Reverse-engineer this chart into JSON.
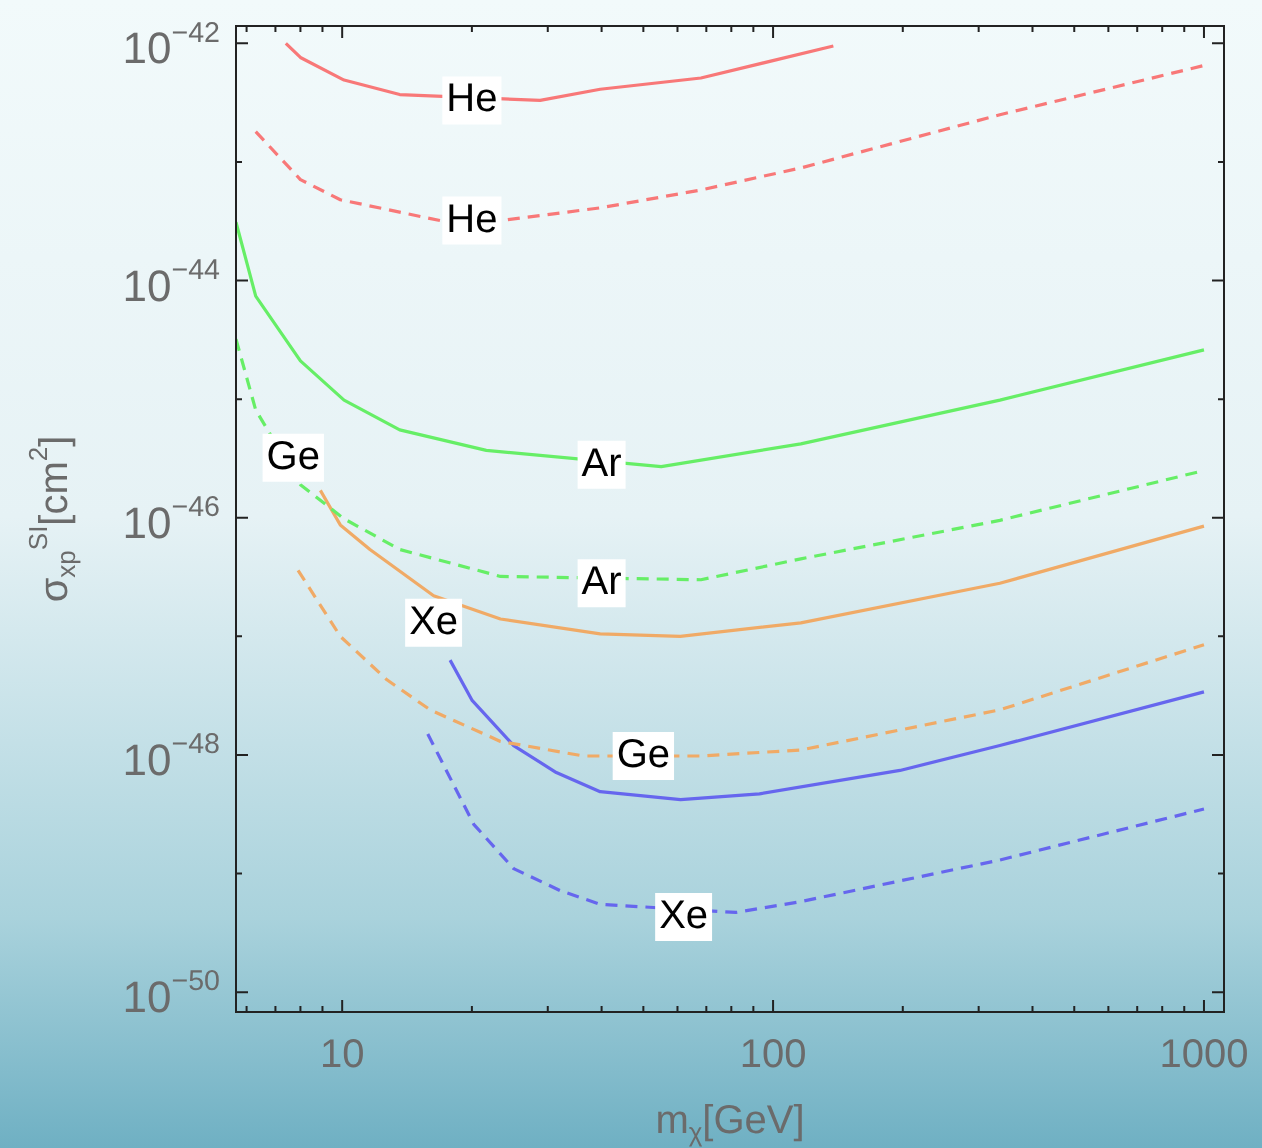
{
  "chart_data": {
    "type": "line",
    "xlabel": "m$_{χ}$[GeV]",
    "ylabel": "σ$_{xp}$$^{SI}$[cm$^{2}$]",
    "log": "xy",
    "grid": false,
    "legend": false,
    "marker": "none",
    "xlim": [
      5.67,
      1113
    ],
    "ylim": [
      6.8e-51,
      1.4e-42
    ],
    "xticks": [
      {
        "value": 6,
        "label": null
      },
      {
        "value": 7,
        "label": null
      },
      {
        "value": 8,
        "label": null
      },
      {
        "value": 9,
        "label": null
      },
      10,
      {
        "value": 20,
        "label": null
      },
      {
        "value": 30,
        "label": null
      },
      {
        "value": 40,
        "label": null
      },
      {
        "value": 50,
        "label": null
      },
      {
        "value": 60,
        "label": null
      },
      {
        "value": 70,
        "label": null
      },
      {
        "value": 80,
        "label": null
      },
      {
        "value": 90,
        "label": null
      },
      100,
      {
        "value": 200,
        "label": null
      },
      {
        "value": 300,
        "label": null
      },
      {
        "value": 400,
        "label": null
      },
      {
        "value": 500,
        "label": null
      },
      {
        "value": 600,
        "label": null
      },
      {
        "value": 700,
        "label": null
      },
      {
        "value": 800,
        "label": null
      },
      {
        "value": 900,
        "label": null
      },
      1000
    ],
    "yticks": [
      {
        "value": 1e-42,
        "label": "10$^{−42}$"
      },
      {
        "value": 1e-43,
        "label": null
      },
      {
        "value": 1e-44,
        "label": "10$^{−44}$"
      },
      {
        "value": 1e-45,
        "label": null
      },
      {
        "value": 1e-46,
        "label": "10$^{−46}$"
      },
      {
        "value": 1e-47,
        "label": null
      },
      {
        "value": 1e-48,
        "label": "10$^{−48}$"
      },
      {
        "value": 1e-49,
        "label": null
      },
      {
        "value": 1e-50,
        "label": "10$^{−50}$"
      }
    ],
    "series": [
      {
        "color": "#f87878",
        "line_style": "solid",
        "x": [
          7.4,
          8.0,
          10.1,
          13.6,
          28.8,
          39.7,
          68,
          138
        ],
        "values": [
          1e-42,
          7.6e-43,
          4.9e-43,
          3.7e-43,
          3.3e-43,
          4.1e-43,
          5.1e-43,
          9.5e-43
        ]
      },
      {
        "color": "#f87878",
        "line_style": "dashed",
        "x": [
          6.3,
          8.0,
          9.9,
          16.9,
          23.3,
          39.7,
          68,
          116,
          336,
          1000
        ],
        "values": [
          1.8e-43,
          7.1e-44,
          4.8e-44,
          3.2e-44,
          3.2e-44,
          4.1e-44,
          5.8e-44,
          8.9e-44,
          2.5e-43,
          6.5e-43
        ]
      },
      {
        "color": "#66ee66",
        "line_style": "solid",
        "x": [
          5.67,
          6.3,
          8.0,
          10.1,
          13.6,
          21.6,
          55,
          116,
          336,
          1000
        ],
        "values": [
          3.1e-44,
          7.4e-45,
          2.1e-45,
          9.8e-46,
          5.5e-46,
          3.7e-46,
          2.7e-46,
          4.2e-46,
          9.8e-46,
          2.6e-45
        ]
      },
      {
        "color": "#66ee66",
        "line_style": "dashed",
        "x": [
          5.67,
          6.3,
          8.0,
          10.1,
          13.6,
          23.3,
          68,
          116,
          336,
          1000
        ],
        "values": [
          3.2e-45,
          8.1e-46,
          1.9e-46,
          9.8e-47,
          5.4e-47,
          3.2e-47,
          3e-47,
          4.5e-47,
          9.5e-47,
          2.5e-46
        ]
      },
      {
        "color": "#f0aa66",
        "line_style": "solid",
        "x": [
          8.9,
          9.9,
          11.6,
          16.3,
          23.3,
          39.7,
          60.9,
          116,
          336,
          1000
        ],
        "values": [
          1.7e-46,
          8.7e-47,
          5.4e-47,
          2.2e-47,
          1.4e-47,
          1.05e-47,
          1e-47,
          1.3e-47,
          2.8e-47,
          8.5e-47
        ]
      },
      {
        "color": "#f0aa66",
        "line_style": "dashed",
        "x": [
          7.9,
          9.9,
          12.7,
          16.0,
          23.3,
          36.3,
          68,
          116,
          336,
          1000
        ],
        "values": [
          3.6e-47,
          1e-47,
          4.3e-48,
          2.4e-48,
          1.3e-48,
          9.8e-49,
          9.8e-49,
          1.1e-48,
          2.4e-48,
          8.5e-48
        ]
      },
      {
        "color": "#6666ee",
        "line_style": "solid",
        "x": [
          17.8,
          20,
          25.0,
          31.4,
          39.7,
          61,
          93,
          197,
          336,
          1000
        ],
        "values": [
          6.3e-48,
          2.9e-48,
          1.2e-48,
          7.1e-49,
          4.9e-49,
          4.2e-49,
          4.7e-49,
          7.4e-49,
          1.2e-48,
          3.4e-48
        ]
      },
      {
        "color": "#6666ee",
        "line_style": "dashed",
        "x": [
          15.8,
          20.2,
          25,
          32,
          39.7,
          82,
          116,
          336,
          1000
        ],
        "values": [
          1.5e-48,
          2.6e-49,
          1.1e-49,
          7.2e-50,
          5.5e-50,
          4.7e-50,
          5.8e-50,
          1.3e-49,
          3.5e-49
        ]
      }
    ],
    "annotations": [
      {
        "text": "He",
        "x": 20,
        "y": 3.3e-43
      },
      {
        "text": "He",
        "x": 20,
        "y": 3.2e-44
      },
      {
        "text": "Ar",
        "x": 40,
        "y": 2.8e-46
      },
      {
        "text": "Ar",
        "x": 40,
        "y": 2.8e-47
      },
      {
        "text": "Ge",
        "x": 7.7,
        "y": 3.2e-46
      },
      {
        "text": "Xe",
        "x": 16.3,
        "y": 1.3e-47
      },
      {
        "text": "Ge",
        "x": 50,
        "y": 9.8e-49
      },
      {
        "text": "Xe",
        "x": 62,
        "y": 4.3e-50
      }
    ]
  }
}
